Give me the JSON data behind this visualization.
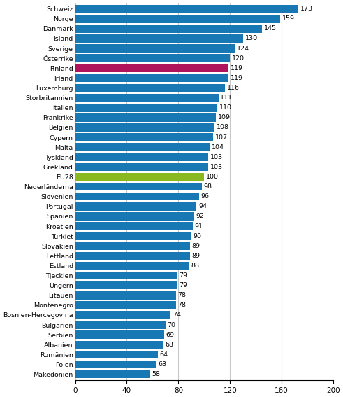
{
  "categories": [
    "Schweiz",
    "Norge",
    "Danmark",
    "Island",
    "Sverige",
    "Österrike",
    "Finland",
    "Irland",
    "Luxemburg",
    "Storbritannien",
    "Italien",
    "Frankrike",
    "Belgien",
    "Cypern",
    "Malta",
    "Tyskland",
    "Grekland",
    "EU28",
    "Nederländerna",
    "Slovenien",
    "Portugal",
    "Spanien",
    "Kroatien",
    "Turkiet",
    "Slovakien",
    "Lettland",
    "Estland",
    "Tjeckien",
    "Ungern",
    "Litauen",
    "Montenegro",
    "Bosnien-Hercegovina",
    "Bulgarien",
    "Serbien",
    "Albanien",
    "Rumänien",
    "Polen",
    "Makedonien"
  ],
  "values": [
    173,
    159,
    145,
    130,
    124,
    120,
    119,
    119,
    116,
    111,
    110,
    109,
    108,
    107,
    104,
    103,
    103,
    100,
    98,
    96,
    94,
    92,
    91,
    90,
    89,
    89,
    88,
    79,
    79,
    78,
    78,
    74,
    70,
    69,
    68,
    64,
    63,
    58
  ],
  "bar_colors": [
    "#1878b4",
    "#1878b4",
    "#1878b4",
    "#1878b4",
    "#1878b4",
    "#1878b4",
    "#b0145a",
    "#1878b4",
    "#1878b4",
    "#1878b4",
    "#1878b4",
    "#1878b4",
    "#1878b4",
    "#1878b4",
    "#1878b4",
    "#1878b4",
    "#1878b4",
    "#8ab820",
    "#1878b4",
    "#1878b4",
    "#1878b4",
    "#1878b4",
    "#1878b4",
    "#1878b4",
    "#1878b4",
    "#1878b4",
    "#1878b4",
    "#1878b4",
    "#1878b4",
    "#1878b4",
    "#1878b4",
    "#1878b4",
    "#1878b4",
    "#1878b4",
    "#1878b4",
    "#1878b4",
    "#1878b4",
    "#1878b4"
  ],
  "xlim": [
    0,
    200
  ],
  "xticks": [
    0,
    40,
    80,
    120,
    160,
    200
  ],
  "bar_height": 0.82,
  "label_fontsize": 6.8,
  "tick_fontsize": 7.5,
  "value_fontsize": 6.8,
  "background_color": "#ffffff",
  "grid_color": "#c8c8c8"
}
